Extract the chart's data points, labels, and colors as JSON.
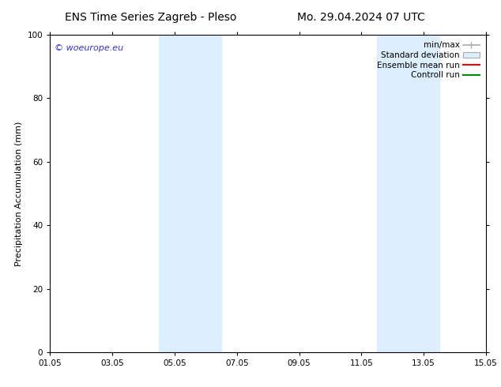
{
  "title_left": "ENS Time Series Zagreb - Pleso",
  "title_right": "Mo. 29.04.2024 07 UTC",
  "ylabel": "Precipitation Accumulation (mm)",
  "ylim": [
    0,
    100
  ],
  "xtick_labels": [
    "01.05",
    "03.05",
    "05.05",
    "07.05",
    "09.05",
    "11.05",
    "13.05",
    "15.05"
  ],
  "xtick_positions": [
    0,
    2,
    4,
    6,
    8,
    10,
    12,
    14
  ],
  "shaded_bands": [
    {
      "xmin": 3.5,
      "xmax": 5.5
    },
    {
      "xmin": 10.5,
      "xmax": 12.5
    }
  ],
  "shaded_color": "#ddeeff",
  "background_color": "#ffffff",
  "watermark_text": "© woeurope.eu",
  "watermark_color": "#3333cc",
  "legend_entries": [
    {
      "label": "min/max",
      "color": "#aaaaaa",
      "type": "errorbar"
    },
    {
      "label": "Standard deviation",
      "color": "#ccddee",
      "type": "box"
    },
    {
      "label": "Ensemble mean run",
      "color": "#ff0000",
      "type": "line"
    },
    {
      "label": "Controll run",
      "color": "#008800",
      "type": "line"
    }
  ],
  "font_size_title": 10,
  "font_size_axis": 8,
  "font_size_tick": 7.5,
  "font_size_legend": 7.5,
  "font_size_watermark": 8,
  "spine_color": "#000000",
  "ytick_values": [
    0,
    20,
    40,
    60,
    80,
    100
  ]
}
